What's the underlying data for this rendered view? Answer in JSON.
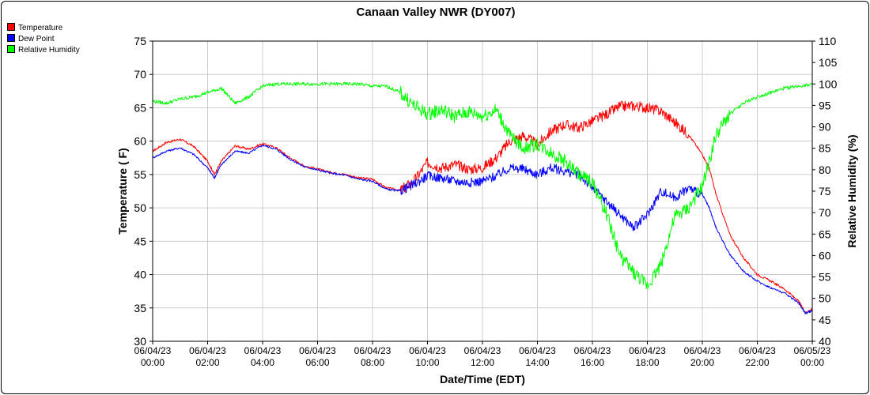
{
  "chart_data": {
    "type": "line",
    "title": "Canaan Valley NWR (DY007)",
    "xlabel": "Date/Time (EDT)",
    "ylabel_left": "Temperature ( F)",
    "ylabel_right": "Relative Humidity (%)",
    "ylim_left": [
      30,
      75
    ],
    "ylim_right": [
      40,
      110
    ],
    "y_ticks_left": [
      30,
      35,
      40,
      45,
      50,
      55,
      60,
      65,
      70,
      75
    ],
    "y_ticks_right": [
      40,
      45,
      50,
      55,
      60,
      65,
      70,
      75,
      80,
      85,
      90,
      95,
      100,
      105,
      110
    ],
    "xlim": [
      0,
      24
    ],
    "x_ticks": [
      {
        "hour": 0,
        "date": "06/04/23",
        "time": "00:00"
      },
      {
        "hour": 2,
        "date": "06/04/23",
        "time": "02:00"
      },
      {
        "hour": 4,
        "date": "06/04/23",
        "time": "04:00"
      },
      {
        "hour": 6,
        "date": "06/04/23",
        "time": "06:00"
      },
      {
        "hour": 8,
        "date": "06/04/23",
        "time": "08:00"
      },
      {
        "hour": 10,
        "date": "06/04/23",
        "time": "10:00"
      },
      {
        "hour": 12,
        "date": "06/04/23",
        "time": "12:00"
      },
      {
        "hour": 14,
        "date": "06/04/23",
        "time": "14:00"
      },
      {
        "hour": 16,
        "date": "06/04/23",
        "time": "16:00"
      },
      {
        "hour": 18,
        "date": "06/04/23",
        "time": "18:00"
      },
      {
        "hour": 20,
        "date": "06/04/23",
        "time": "20:00"
      },
      {
        "hour": 22,
        "date": "06/04/23",
        "time": "22:00"
      },
      {
        "hour": 24,
        "date": "06/05/23",
        "time": "00:00"
      }
    ],
    "grid": true,
    "legend_position": "top-left",
    "series": [
      {
        "name": "Temperature",
        "axis": "left",
        "color": "#ff0000",
        "x": [
          0,
          0.5,
          1,
          1.5,
          2,
          2.25,
          2.5,
          3,
          3.5,
          4,
          4.5,
          5,
          5.5,
          6,
          6.5,
          7,
          7.5,
          8,
          8.5,
          9,
          9.5,
          10,
          10.5,
          11,
          11.5,
          12,
          12.5,
          13,
          13.5,
          14,
          14.5,
          15,
          15.5,
          16,
          16.5,
          17,
          17.5,
          18,
          18.5,
          19,
          19.5,
          20,
          20.25,
          20.5,
          21,
          21.5,
          22,
          22.5,
          23,
          23.5,
          23.75,
          24
        ],
        "y": [
          58.5,
          59.8,
          60.3,
          59.2,
          57.0,
          55.0,
          57.0,
          59.3,
          58.8,
          59.6,
          59.0,
          57.5,
          56.3,
          55.8,
          55.3,
          55.0,
          54.5,
          54.3,
          53.0,
          52.6,
          54.0,
          56.8,
          56.0,
          56.5,
          55.8,
          56.0,
          57.5,
          60.0,
          60.8,
          59.5,
          61.5,
          62.5,
          62.0,
          63.0,
          64.0,
          65.2,
          65.3,
          65.0,
          64.5,
          62.8,
          61.0,
          58.0,
          56.0,
          52.0,
          46.0,
          42.5,
          40.0,
          39.0,
          37.8,
          36.0,
          34.3,
          34.8
        ]
      },
      {
        "name": "Dew Point",
        "axis": "left",
        "color": "#0000ff",
        "x": [
          0,
          0.5,
          1,
          1.5,
          2,
          2.25,
          2.5,
          3,
          3.5,
          4,
          4.5,
          5,
          5.5,
          6,
          6.5,
          7,
          7.5,
          8,
          8.5,
          9,
          9.5,
          10,
          10.5,
          11,
          11.5,
          12,
          12.5,
          13,
          13.5,
          14,
          14.5,
          15,
          15.5,
          16,
          16.5,
          17,
          17.5,
          18,
          18.5,
          19,
          19.5,
          20,
          20.25,
          20.5,
          21,
          21.5,
          22,
          22.5,
          23,
          23.5,
          23.75,
          24
        ],
        "y": [
          57.5,
          58.5,
          59.0,
          58.0,
          56.0,
          54.5,
          56.5,
          58.5,
          58.2,
          59.4,
          58.8,
          57.3,
          56.2,
          55.7,
          55.2,
          54.9,
          54.3,
          54.0,
          52.8,
          52.5,
          53.5,
          54.8,
          54.5,
          54.0,
          53.8,
          54.0,
          54.8,
          56.0,
          55.8,
          55.0,
          56.0,
          55.5,
          55.0,
          53.0,
          51.0,
          49.0,
          47.0,
          49.0,
          52.5,
          51.5,
          53.0,
          52.0,
          50.0,
          47.0,
          43.0,
          40.5,
          39.0,
          38.0,
          37.2,
          35.8,
          34.2,
          34.6
        ]
      },
      {
        "name": "Relative Humidity",
        "axis": "right",
        "color": "#00ff00",
        "x": [
          0,
          0.5,
          1,
          1.5,
          2,
          2.5,
          3,
          3.5,
          4,
          4.5,
          5,
          5.5,
          6,
          6.5,
          7,
          7.5,
          8,
          8.5,
          9,
          9.5,
          10,
          10.5,
          11,
          11.5,
          12,
          12.5,
          13,
          13.5,
          14,
          14.5,
          15,
          15.5,
          16,
          16.5,
          17,
          17.5,
          18,
          18.5,
          19,
          19.5,
          20,
          20.5,
          21,
          21.5,
          22,
          22.5,
          23,
          23.5,
          24
        ],
        "y": [
          96.0,
          95.5,
          96.5,
          97.0,
          98.0,
          99.0,
          95.5,
          97.0,
          99.5,
          100.0,
          100.0,
          100.0,
          100.0,
          100.0,
          100.0,
          100.0,
          99.5,
          99.5,
          98.0,
          95.0,
          93.0,
          94.0,
          92.5,
          93.5,
          92.5,
          94.0,
          88.0,
          85.0,
          86.0,
          84.0,
          82.0,
          79.0,
          77.0,
          70.0,
          60.0,
          56.0,
          53.0,
          58.0,
          69.0,
          71.0,
          76.0,
          88.0,
          93.0,
          95.5,
          97.0,
          98.0,
          99.0,
          99.5,
          100.0
        ]
      }
    ]
  }
}
